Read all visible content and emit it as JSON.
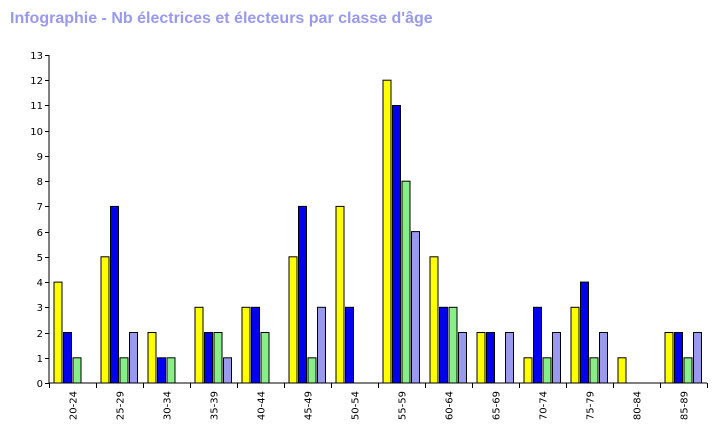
{
  "chart_data": {
    "type": "bar",
    "title": "Infographie - Nb électrices et électeurs par classe d'âge",
    "categories": [
      "20-24",
      "25-29",
      "30-34",
      "35-39",
      "40-44",
      "45-49",
      "50-54",
      "55-59",
      "60-64",
      "65-69",
      "70-74",
      "75-79",
      "80-84",
      "85-89"
    ],
    "series": [
      {
        "color": "#ffff00",
        "values": [
          4,
          5,
          2,
          3,
          3,
          5,
          7,
          12,
          5,
          2,
          1,
          3,
          1,
          2
        ]
      },
      {
        "color": "#0000ee",
        "values": [
          2,
          7,
          1,
          2,
          3,
          7,
          3,
          11,
          3,
          2,
          3,
          4,
          0,
          2
        ]
      },
      {
        "color": "#88ee88",
        "values": [
          1,
          1,
          1,
          2,
          2,
          1,
          0,
          8,
          3,
          0,
          1,
          1,
          0,
          1
        ]
      },
      {
        "color": "#9999ee",
        "values": [
          0,
          2,
          0,
          1,
          0,
          3,
          0,
          6,
          2,
          2,
          2,
          2,
          0,
          2
        ]
      }
    ],
    "yticks": [
      0,
      1,
      2,
      3,
      4,
      5,
      6,
      7,
      8,
      9,
      10,
      11,
      12,
      13
    ],
    "ylim": [
      0,
      13
    ],
    "xlabel": "",
    "ylabel": "",
    "grid": false,
    "legend": "none"
  }
}
